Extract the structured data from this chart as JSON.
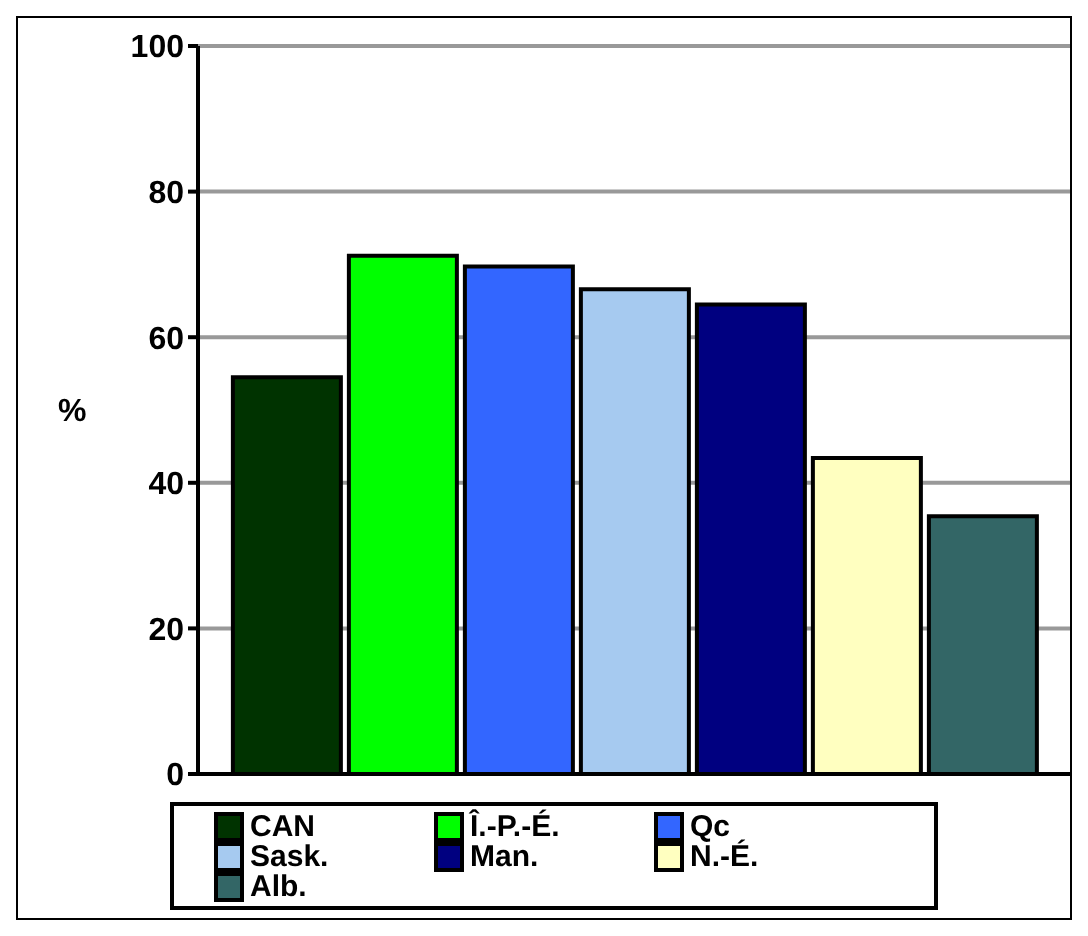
{
  "chart_data": {
    "type": "bar",
    "ylabel": "%",
    "categories": [
      null
    ],
    "series": [
      {
        "name": "CAN",
        "color": "#003300",
        "values": [
          54.5
        ]
      },
      {
        "name": "Î.-P.-É.",
        "color": "#00ff00",
        "values": [
          71.2
        ]
      },
      {
        "name": "Qc",
        "color": "#3366ff",
        "values": [
          69.7
        ]
      },
      {
        "name": "Sask.",
        "color": "#a6caf0",
        "values": [
          66.6
        ]
      },
      {
        "name": "Man.",
        "color": "#000080",
        "values": [
          64.5
        ]
      },
      {
        "name": "N.-É.",
        "color": "#ffffc0",
        "values": [
          43.4
        ]
      },
      {
        "name": "Alb.",
        "color": "#336666",
        "values": [
          35.4
        ]
      }
    ],
    "ylim": [
      0,
      100
    ],
    "yticks": [
      0,
      20,
      40,
      60,
      80,
      100
    ],
    "grid": "y",
    "legend": "bottom"
  }
}
